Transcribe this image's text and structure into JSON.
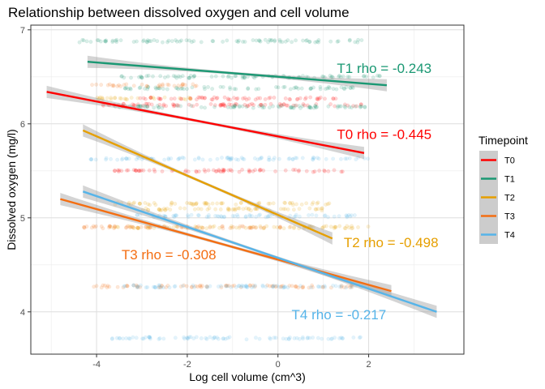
{
  "chart_data": {
    "type": "scatter",
    "title": "Relationship between dissolved oxygen and cell volume",
    "xlabel": "Log cell volume (cm^3)",
    "ylabel": "Dissolved oxygen (mg/l)",
    "xlim": [
      -5.45,
      4.1
    ],
    "ylim": [
      3.55,
      7.05
    ],
    "xticks": [
      -4,
      -2,
      0,
      2
    ],
    "yticks": [
      4,
      5,
      6,
      7
    ],
    "grid": true,
    "legend": {
      "title": "Timepoint",
      "position": "right"
    },
    "series": [
      {
        "name": "T0",
        "color": "#ff0000",
        "levels": [
          {
            "y": 6.2,
            "x_range": [
              -3.9,
              2.1
            ]
          },
          {
            "y": 6.27,
            "x_range": [
              -3.2,
              1.4
            ]
          },
          {
            "y": 5.5,
            "x_range": [
              -3.6,
              1.6
            ]
          }
        ],
        "fit": {
          "x": [
            -5.1,
            1.9
          ],
          "y": [
            6.34,
            5.69
          ]
        },
        "annotation": {
          "text": "T0 rho = -0.445",
          "x": 1.3,
          "y": 5.84
        }
      },
      {
        "name": "T1",
        "color": "#1a9873",
        "levels": [
          {
            "y": 6.88,
            "x_range": [
              -4.4,
              1.9
            ]
          },
          {
            "y": 6.5,
            "x_range": [
              -3.6,
              2.4
            ]
          },
          {
            "y": 6.38,
            "x_range": [
              -3.4,
              1.7
            ]
          },
          {
            "y": 6.18,
            "x_range": [
              -3.7,
              2.0
            ]
          }
        ],
        "fit": {
          "x": [
            -4.2,
            2.4
          ],
          "y": [
            6.66,
            6.41
          ]
        },
        "annotation": {
          "text": "T1 rho = -0.243",
          "x": 1.3,
          "y": 6.54
        }
      },
      {
        "name": "T2",
        "color": "#e69f00",
        "levels": [
          {
            "y": 6.27,
            "x_range": [
              -4.0,
              -1.9
            ]
          },
          {
            "y": 5.15,
            "x_range": [
              -3.6,
              1.2
            ]
          },
          {
            "y": 5.09,
            "x_range": [
              -3.1,
              1.0
            ]
          },
          {
            "y": 4.9,
            "x_range": [
              -3.8,
              2.0
            ]
          }
        ],
        "fit": {
          "x": [
            -4.3,
            1.2
          ],
          "y": [
            5.93,
            4.78
          ]
        },
        "annotation": {
          "text": "T2 rho = -0.498",
          "x": 1.45,
          "y": 4.69
        }
      },
      {
        "name": "T3",
        "color": "#f46e12",
        "levels": [
          {
            "y": 6.41,
            "x_range": [
              -4.1,
              -1.7
            ]
          },
          {
            "y": 4.9,
            "x_range": [
              -4.3,
              0.3
            ]
          },
          {
            "y": 4.27,
            "x_range": [
              -4.1,
              1.7
            ]
          }
        ],
        "fit": {
          "x": [
            -4.8,
            2.5
          ],
          "y": [
            5.2,
            4.22
          ]
        },
        "annotation": {
          "text": "T3 rho = -0.308",
          "x": -3.45,
          "y": 4.56
        }
      },
      {
        "name": "T4",
        "color": "#56b4e9",
        "levels": [
          {
            "y": 5.63,
            "x_range": [
              -4.2,
              2.0
            ]
          },
          {
            "y": 5.02,
            "x_range": [
              -3.2,
              1.8
            ]
          },
          {
            "y": 4.27,
            "x_range": [
              -3.5,
              1.9
            ]
          },
          {
            "y": 3.72,
            "x_range": [
              -3.7,
              2.0
            ]
          }
        ],
        "fit": {
          "x": [
            -4.3,
            3.5
          ],
          "y": [
            5.28,
            4.0
          ]
        },
        "annotation": {
          "text": "T4 rho = -0.217",
          "x": 0.3,
          "y": 3.92
        }
      }
    ]
  }
}
